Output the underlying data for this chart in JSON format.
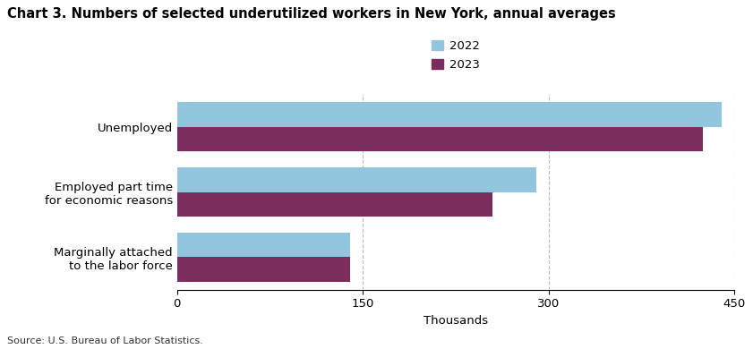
{
  "title": "Chart 3. Numbers of selected underutilized workers in New York, annual averages",
  "categories": [
    "Unemployed",
    "Employed part time\nfor economic reasons",
    "Marginally attached\nto the labor force"
  ],
  "values_2022": [
    440,
    290,
    140
  ],
  "values_2023": [
    425,
    255,
    140
  ],
  "color_2022": "#92C5DE",
  "color_2023": "#7B2D5E",
  "xlabel": "Thousands",
  "xlim": [
    0,
    450
  ],
  "xticks": [
    0,
    150,
    300,
    450
  ],
  "legend_labels": [
    "2022",
    "2023"
  ],
  "source": "Source: U.S. Bureau of Labor Statistics.",
  "title_fontsize": 10.5,
  "axis_fontsize": 9.5,
  "tick_fontsize": 9.5,
  "source_fontsize": 8,
  "bar_height": 0.38,
  "grid_color": "#BBBBBB",
  "grid_linestyle": "--"
}
